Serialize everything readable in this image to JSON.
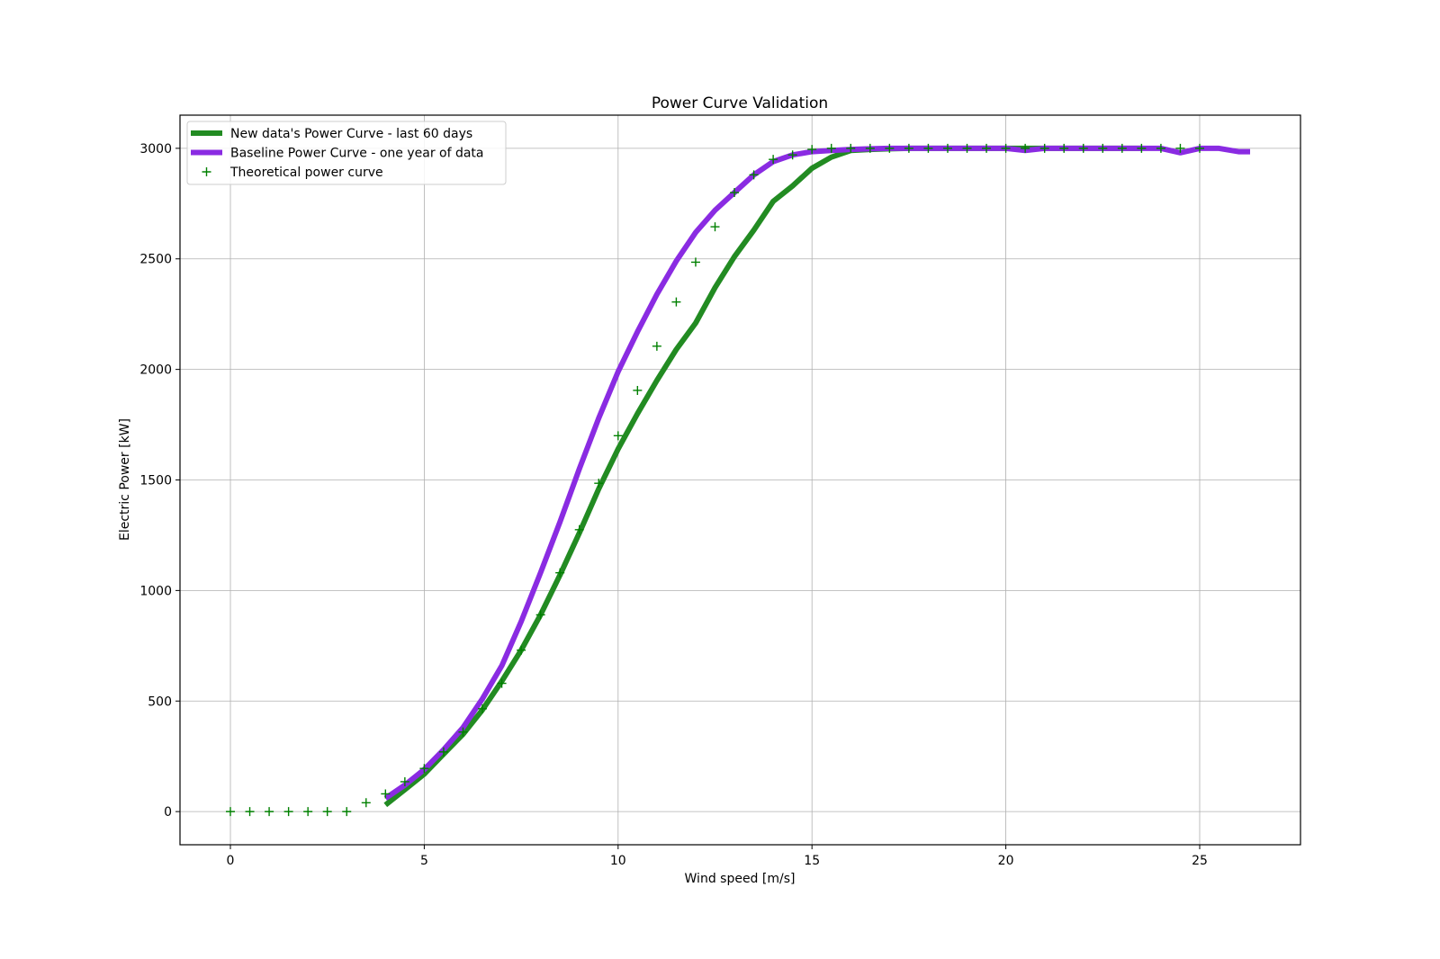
{
  "chart_data": {
    "type": "line",
    "title": "Power Curve Validation",
    "xlabel": "Wind speed [m/s]",
    "ylabel": "Electric Power [kW]",
    "xlim": [
      -1.3,
      27.6
    ],
    "ylim": [
      -150,
      3150
    ],
    "xticks": [
      0,
      5,
      10,
      15,
      20,
      25
    ],
    "yticks": [
      0,
      500,
      1000,
      1500,
      2000,
      2500,
      3000
    ],
    "grid": true,
    "legend_position": "top-left",
    "series": [
      {
        "name": "New data's Power Curve - last 60 days",
        "kind": "line",
        "color": "#228b22",
        "x": [
          4.0,
          4.5,
          5.0,
          5.5,
          6.0,
          6.5,
          7.0,
          7.5,
          8.0,
          8.5,
          9.0,
          9.5,
          10.0,
          10.5,
          11.0,
          11.5,
          12.0,
          12.5,
          13.0,
          13.5,
          14.0,
          14.5,
          15.0,
          15.5,
          16.0,
          16.5,
          17.0,
          17.5,
          18.0,
          18.5,
          19.0,
          19.5,
          20.0,
          20.5,
          21.0,
          21.5,
          22.0,
          22.5,
          23.0,
          23.5
        ],
        "y": [
          30,
          100,
          170,
          260,
          350,
          460,
          590,
          730,
          890,
          1070,
          1260,
          1460,
          1640,
          1800,
          1950,
          2090,
          2210,
          2370,
          2510,
          2630,
          2760,
          2830,
          2910,
          2960,
          2990,
          2995,
          2998,
          3000,
          3000,
          3000,
          3000,
          3000,
          3000,
          3000,
          3000,
          3000,
          3000,
          3000,
          3000,
          3000
        ]
      },
      {
        "name": "Baseline Power Curve - one year of data",
        "kind": "line",
        "color": "#8a2be2",
        "x": [
          4.0,
          4.5,
          5.0,
          5.5,
          6.0,
          6.5,
          7.0,
          7.5,
          8.0,
          8.5,
          9.0,
          9.5,
          10.0,
          10.5,
          11.0,
          11.5,
          12.0,
          12.5,
          13.0,
          13.5,
          14.0,
          14.5,
          15.0,
          15.5,
          16.0,
          16.5,
          17.0,
          17.5,
          18.0,
          18.5,
          19.0,
          19.5,
          20.0,
          20.5,
          21.0,
          21.5,
          22.0,
          22.5,
          23.0,
          23.5,
          24.0,
          24.5,
          25.0,
          25.5,
          26.0,
          26.3
        ],
        "y": [
          60,
          120,
          190,
          280,
          380,
          510,
          660,
          860,
          1080,
          1310,
          1550,
          1780,
          1990,
          2170,
          2340,
          2490,
          2620,
          2720,
          2800,
          2880,
          2940,
          2970,
          2985,
          2990,
          2995,
          2998,
          3000,
          3000,
          3000,
          3000,
          3000,
          3000,
          3000,
          2990,
          3000,
          3000,
          3000,
          3000,
          3000,
          3000,
          3000,
          2980,
          3000,
          3000,
          2985,
          2985
        ]
      },
      {
        "name": "Theoretical power curve",
        "kind": "scatter",
        "marker": "+",
        "color": "#008000",
        "x": [
          0.0,
          0.5,
          1.0,
          1.5,
          2.0,
          2.5,
          3.0,
          3.5,
          4.0,
          4.5,
          5.0,
          5.5,
          6.0,
          6.5,
          7.0,
          7.5,
          8.0,
          8.5,
          9.0,
          9.5,
          10.0,
          10.5,
          11.0,
          11.5,
          12.0,
          12.5,
          13.0,
          13.5,
          14.0,
          14.5,
          15.0,
          15.5,
          16.0,
          16.5,
          17.0,
          17.5,
          18.0,
          18.5,
          19.0,
          19.5,
          20.0,
          20.5,
          21.0,
          21.5,
          22.0,
          22.5,
          23.0,
          23.5,
          24.0,
          24.5,
          25.0
        ],
        "y": [
          0,
          0,
          0,
          0,
          0,
          0,
          0,
          40,
          80,
          135,
          195,
          270,
          360,
          465,
          580,
          730,
          890,
          1080,
          1275,
          1485,
          1700,
          1905,
          2105,
          2305,
          2485,
          2645,
          2800,
          2880,
          2950,
          2970,
          2995,
          3000,
          3000,
          3000,
          3000,
          3000,
          3000,
          3000,
          3000,
          3000,
          3000,
          3000,
          3000,
          3000,
          3000,
          3000,
          3000,
          3000,
          3000,
          3000,
          3000
        ]
      }
    ]
  }
}
